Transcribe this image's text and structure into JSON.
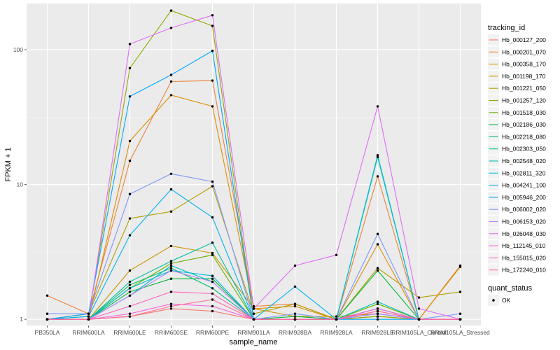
{
  "chart_data": {
    "type": "line",
    "xlabel": "sample_name",
    "ylabel": "FPKM + 1",
    "y_scale": "log10",
    "ylim": [
      0.9,
      220
    ],
    "y_ticks": [
      1,
      10,
      100
    ],
    "y_tick_labels": [
      "1",
      "10",
      "100"
    ],
    "grid": true,
    "legend_placement": "right",
    "categories": [
      "PB350LA",
      "RRIM600LA",
      "RRIM600LE",
      "RRIM600SE",
      "RRIM600PE",
      "RRIM901LA",
      "RRIM928BA",
      "RRIM928LA",
      "RRIM928LE",
      "RRIM105LA_Control",
      "RRIM105LA_Stressed"
    ],
    "legend_title": "tracking_id",
    "series": [
      {
        "name": "Hb_000127_200",
        "color": "#F8766D",
        "values": [
          1.0,
          1.0,
          1.05,
          1.2,
          1.15,
          1.0,
          1.0,
          1.0,
          1.05,
          1.0,
          1.0
        ]
      },
      {
        "name": "Hb_000201_070",
        "color": "#EC823C",
        "values": [
          1.5,
          1.1,
          15.0,
          58.0,
          59.0,
          1.25,
          1.3,
          1.0,
          11.5,
          1.0,
          2.5
        ]
      },
      {
        "name": "Hb_000358_170",
        "color": "#DC8E00",
        "values": [
          1.0,
          1.0,
          21.0,
          46.0,
          38.0,
          1.2,
          1.25,
          1.0,
          3.6,
          1.0,
          2.45
        ]
      },
      {
        "name": "Hb_001198_170",
        "color": "#C99700",
        "values": [
          1.0,
          1.0,
          2.3,
          3.5,
          3.1,
          1.2,
          1.05,
          1.05,
          1.1,
          1.0,
          1.0
        ]
      },
      {
        "name": "Hb_001221_050",
        "color": "#B2A000",
        "values": [
          1.0,
          1.1,
          5.6,
          6.3,
          9.7,
          1.1,
          1.3,
          1.0,
          2.4,
          1.45,
          1.6
        ]
      },
      {
        "name": "Hb_001257_120",
        "color": "#94A800",
        "values": [
          1.0,
          1.05,
          73.0,
          195.0,
          150.0,
          1.0,
          1.0,
          1.0,
          1.05,
          1.0,
          1.0
        ]
      },
      {
        "name": "Hb_001518_030",
        "color": "#6BB100",
        "values": [
          1.0,
          1.0,
          1.7,
          2.6,
          3.0,
          1.0,
          1.0,
          1.0,
          1.3,
          1.0,
          1.0
        ]
      },
      {
        "name": "Hb_002186_030",
        "color": "#00BA38",
        "values": [
          1.0,
          1.0,
          1.6,
          2.0,
          2.0,
          1.0,
          1.05,
          1.0,
          2.3,
          1.0,
          1.0
        ]
      },
      {
        "name": "Hb_002218_080",
        "color": "#00BD73",
        "values": [
          1.0,
          1.0,
          1.8,
          2.4,
          1.7,
          1.0,
          1.0,
          1.0,
          1.2,
          1.0,
          1.0
        ]
      },
      {
        "name": "Hb_002303_050",
        "color": "#00C09B",
        "values": [
          1.0,
          1.0,
          1.9,
          2.7,
          3.7,
          1.0,
          1.0,
          1.0,
          16.0,
          1.0,
          1.0
        ]
      },
      {
        "name": "Hb_002548_020",
        "color": "#00C0BB",
        "values": [
          1.0,
          1.0,
          1.5,
          2.5,
          1.9,
          1.0,
          1.0,
          1.0,
          1.35,
          1.0,
          1.0
        ]
      },
      {
        "name": "Hb_002811_320",
        "color": "#00BCD6",
        "values": [
          1.0,
          1.0,
          1.7,
          2.3,
          2.1,
          1.0,
          1.0,
          1.0,
          16.5,
          1.0,
          1.0
        ]
      },
      {
        "name": "Hb_004241_100",
        "color": "#00B4EF",
        "values": [
          1.0,
          1.05,
          4.2,
          9.2,
          5.7,
          1.0,
          1.75,
          1.0,
          1.1,
          1.0,
          1.0
        ]
      },
      {
        "name": "Hb_005946_200",
        "color": "#00A6FF",
        "values": [
          1.0,
          1.1,
          45.0,
          65.0,
          98.0,
          1.0,
          1.0,
          1.0,
          1.0,
          1.0,
          1.0
        ]
      },
      {
        "name": "Hb_006002_020",
        "color": "#7F96FF",
        "values": [
          1.1,
          1.1,
          8.5,
          12.0,
          10.5,
          1.0,
          1.1,
          1.0,
          4.3,
          1.0,
          1.1
        ]
      },
      {
        "name": "Hb_006153_020",
        "color": "#BB80FF",
        "values": [
          1.0,
          1.0,
          1.5,
          2.3,
          1.9,
          1.0,
          1.0,
          1.0,
          1.1,
          1.0,
          1.0
        ]
      },
      {
        "name": "Hb_026048_030",
        "color": "#E16CF6",
        "values": [
          1.0,
          1.0,
          110.0,
          145.0,
          180.0,
          1.2,
          2.5,
          3.0,
          38.0,
          1.2,
          1.0
        ]
      },
      {
        "name": "Hb_112145_010",
        "color": "#F763DF",
        "values": [
          1.0,
          1.0,
          1.1,
          1.3,
          1.25,
          1.0,
          1.0,
          1.0,
          1.2,
          1.0,
          1.0
        ]
      },
      {
        "name": "Hb_155015_020",
        "color": "#FF62BC",
        "values": [
          1.0,
          1.0,
          1.25,
          1.6,
          1.55,
          1.0,
          1.0,
          1.0,
          1.15,
          1.0,
          1.0
        ]
      },
      {
        "name": "Hb_172240_010",
        "color": "#FF6C91",
        "values": [
          1.0,
          1.0,
          1.05,
          1.25,
          1.4,
          1.0,
          1.0,
          1.0,
          1.15,
          1.0,
          1.0
        ]
      }
    ],
    "shape_legend": {
      "title": "quant_status",
      "items": [
        {
          "label": "OK"
        }
      ]
    }
  }
}
